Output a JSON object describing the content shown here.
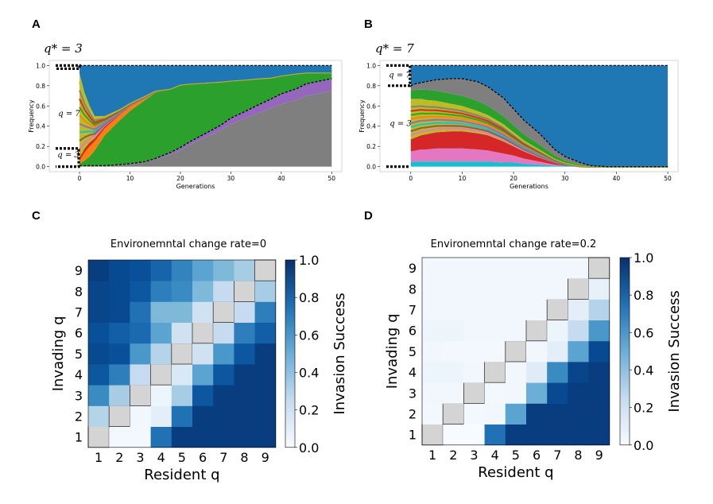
{
  "panels": {
    "A": {
      "letter": "A",
      "qstar": "q* = 3"
    },
    "B": {
      "letter": "B",
      "qstar": "q* = 7"
    },
    "C": {
      "letter": "C"
    },
    "D": {
      "letter": "D"
    }
  },
  "colors": {
    "blue": "#1f77b4",
    "green": "#2ca02c",
    "purple": "#9467bd",
    "gray": "#7f7f7f",
    "orange": "#ff7f0e",
    "red": "#d62728",
    "pink": "#e377c2",
    "cyan": "#17becf",
    "olive": "#bcbd22",
    "brown": "#8c564b",
    "cell_grey": "#d4d4d4"
  },
  "chart_data": [
    {
      "type": "area",
      "panel": "A",
      "title": "q* = 3",
      "xlabel": "Generations",
      "ylabel": "Frequency",
      "xlim": [
        -6,
        52
      ],
      "ylim": [
        -0.05,
        1.05
      ],
      "xticks": [
        "0",
        "10",
        "20",
        "30",
        "40",
        "50"
      ],
      "yticks": [
        "0.0",
        "0.2",
        "0.4",
        "0.6",
        "0.8",
        "1.0"
      ],
      "annotations": [
        "q = 7",
        "q = 3"
      ],
      "x": [
        0,
        1,
        2,
        3,
        5,
        8,
        10,
        13,
        15,
        18,
        20,
        22,
        25,
        28,
        30,
        33,
        35,
        38,
        40,
        43,
        45,
        48,
        50
      ],
      "series": [
        {
          "name": "gray (q=3 lineage)",
          "color": "gray",
          "values": [
            0.01,
            0.01,
            0.01,
            0.01,
            0.01,
            0.02,
            0.03,
            0.05,
            0.07,
            0.12,
            0.16,
            0.22,
            0.29,
            0.36,
            0.42,
            0.48,
            0.52,
            0.58,
            0.62,
            0.66,
            0.7,
            0.73,
            0.75
          ]
        },
        {
          "name": "purple",
          "color": "purple",
          "values": [
            0.0,
            0.0,
            0.0,
            0.0,
            0.0,
            0.0,
            0.0,
            0.0,
            0.01,
            0.02,
            0.03,
            0.03,
            0.04,
            0.05,
            0.06,
            0.07,
            0.08,
            0.09,
            0.1,
            0.11,
            0.12,
            0.12,
            0.12
          ]
        },
        {
          "name": "green (q=7)",
          "color": "green",
          "values": [
            0.02,
            0.05,
            0.09,
            0.15,
            0.3,
            0.44,
            0.52,
            0.61,
            0.65,
            0.63,
            0.62,
            0.57,
            0.5,
            0.43,
            0.37,
            0.31,
            0.27,
            0.21,
            0.18,
            0.15,
            0.11,
            0.08,
            0.06
          ]
        },
        {
          "name": "orange",
          "color": "orange",
          "values": [
            0.03,
            0.08,
            0.1,
            0.09,
            0.07,
            0.05,
            0.04,
            0.02,
            0.01,
            0.0,
            0.0,
            0.0,
            0.0,
            0.0,
            0.0,
            0.0,
            0.0,
            0.0,
            0.0,
            0.0,
            0.0,
            0.0,
            0.0
          ]
        },
        {
          "name": "red",
          "color": "red",
          "values": [
            0.03,
            0.04,
            0.04,
            0.03,
            0.02,
            0.01,
            0.01,
            0.0,
            0.0,
            0.0,
            0.0,
            0.0,
            0.0,
            0.0,
            0.0,
            0.0,
            0.0,
            0.0,
            0.0,
            0.0,
            0.0,
            0.0,
            0.0
          ]
        },
        {
          "name": "mixed others",
          "color": "olive",
          "values": [
            0.83,
            0.55,
            0.36,
            0.22,
            0.1,
            0.05,
            0.03,
            0.02,
            0.01,
            0.0,
            0.0,
            0.0,
            0.0,
            0.0,
            0.0,
            0.0,
            0.0,
            0.0,
            0.0,
            0.0,
            0.0,
            0.0,
            0.0
          ]
        },
        {
          "name": "blue",
          "color": "blue",
          "values": [
            0.08,
            0.27,
            0.4,
            0.5,
            0.5,
            0.43,
            0.37,
            0.3,
            0.25,
            0.23,
            0.19,
            0.18,
            0.17,
            0.16,
            0.15,
            0.14,
            0.13,
            0.12,
            0.1,
            0.08,
            0.07,
            0.07,
            0.07
          ]
        }
      ],
      "dashed_line": {
        "name": "q = 3 frequency",
        "values": [
          0.01,
          0.01,
          0.01,
          0.01,
          0.01,
          0.02,
          0.03,
          0.05,
          0.08,
          0.14,
          0.19,
          0.25,
          0.33,
          0.41,
          0.48,
          0.55,
          0.6,
          0.67,
          0.72,
          0.77,
          0.82,
          0.85,
          0.87
        ]
      }
    },
    {
      "type": "area",
      "panel": "B",
      "title": "q* = 7",
      "xlabel": "Generations",
      "ylabel": "Frequency",
      "xlim": [
        -6,
        52
      ],
      "ylim": [
        -0.05,
        1.05
      ],
      "xticks": [
        "0",
        "10",
        "20",
        "30",
        "40",
        "50"
      ],
      "yticks": [
        "0.0",
        "0.2",
        "0.4",
        "0.6",
        "0.8",
        "1.0"
      ],
      "annotations": [
        "q = 7",
        "q = 3"
      ],
      "x": [
        0,
        1,
        2,
        3,
        5,
        8,
        10,
        13,
        15,
        18,
        20,
        22,
        25,
        28,
        30,
        33,
        35,
        38,
        40,
        43,
        45,
        48,
        50
      ],
      "series": [
        {
          "name": "cyan",
          "color": "cyan",
          "values": [
            0.05,
            0.05,
            0.05,
            0.05,
            0.05,
            0.05,
            0.05,
            0.05,
            0.05,
            0.04,
            0.04,
            0.03,
            0.02,
            0.01,
            0.01,
            0.0,
            0.0,
            0.0,
            0.0,
            0.0,
            0.0,
            0.0,
            0.0
          ]
        },
        {
          "name": "pink",
          "color": "pink",
          "values": [
            0.1,
            0.11,
            0.12,
            0.12,
            0.13,
            0.13,
            0.13,
            0.12,
            0.11,
            0.09,
            0.07,
            0.05,
            0.03,
            0.01,
            0.0,
            0.0,
            0.0,
            0.0,
            0.0,
            0.0,
            0.0,
            0.0,
            0.0
          ]
        },
        {
          "name": "red",
          "color": "red",
          "values": [
            0.12,
            0.13,
            0.14,
            0.15,
            0.16,
            0.17,
            0.17,
            0.16,
            0.15,
            0.12,
            0.09,
            0.07,
            0.04,
            0.02,
            0.01,
            0.0,
            0.0,
            0.0,
            0.0,
            0.0,
            0.0,
            0.0,
            0.0
          ]
        },
        {
          "name": "mixed others",
          "color": "olive",
          "values": [
            0.4,
            0.38,
            0.36,
            0.34,
            0.31,
            0.27,
            0.25,
            0.22,
            0.2,
            0.17,
            0.14,
            0.11,
            0.08,
            0.04,
            0.02,
            0.01,
            0.0,
            0.0,
            0.0,
            0.0,
            0.0,
            0.0,
            0.0
          ]
        },
        {
          "name": "green",
          "color": "green",
          "values": [
            0.08,
            0.09,
            0.09,
            0.1,
            0.1,
            0.1,
            0.1,
            0.1,
            0.09,
            0.08,
            0.07,
            0.06,
            0.05,
            0.03,
            0.02,
            0.01,
            0.0,
            0.0,
            0.0,
            0.0,
            0.0,
            0.0,
            0.0
          ]
        },
        {
          "name": "gray (q=7 lineage)",
          "color": "gray",
          "values": [
            0.05,
            0.06,
            0.07,
            0.08,
            0.11,
            0.15,
            0.17,
            0.19,
            0.19,
            0.18,
            0.16,
            0.14,
            0.11,
            0.06,
            0.04,
            0.02,
            0.01,
            0.0,
            0.0,
            0.0,
            0.0,
            0.0,
            0.0
          ]
        },
        {
          "name": "blue (q=3 lineage)",
          "color": "blue",
          "values": [
            0.2,
            0.18,
            0.17,
            0.16,
            0.14,
            0.13,
            0.13,
            0.16,
            0.21,
            0.32,
            0.43,
            0.54,
            0.67,
            0.83,
            0.9,
            0.96,
            0.99,
            1.0,
            1.0,
            1.0,
            1.0,
            1.0,
            1.0
          ]
        }
      ],
      "dashed_line": {
        "name": "q = 7 boundary",
        "values": [
          0.8,
          0.82,
          0.83,
          0.84,
          0.86,
          0.87,
          0.87,
          0.84,
          0.79,
          0.68,
          0.57,
          0.46,
          0.33,
          0.17,
          0.1,
          0.04,
          0.01,
          0.0,
          0.0,
          0.0,
          0.0,
          0.0,
          0.0
        ]
      }
    },
    {
      "type": "heatmap",
      "panel": "C",
      "title": "Environemntal change rate=0",
      "xlabel": "Resident q",
      "ylabel": "Invading q",
      "x_categories": [
        "1",
        "2",
        "3",
        "4",
        "5",
        "6",
        "7",
        "8",
        "9"
      ],
      "y_categories": [
        "1",
        "2",
        "3",
        "4",
        "5",
        "6",
        "7",
        "8",
        "9"
      ],
      "colorbar": {
        "label": "Invasion Success",
        "ticks": [
          "0.0",
          "0.2",
          "0.4",
          "0.6",
          "0.8",
          "1.0"
        ],
        "range": [
          0,
          1
        ]
      },
      "matrix_rows_invading_1_to_9": [
        [
          null,
          0.02,
          0.02,
          0.75,
          0.95,
          0.95,
          0.95,
          0.95,
          0.95
        ],
        [
          0.3,
          null,
          0.03,
          0.1,
          0.75,
          0.95,
          0.95,
          0.95,
          0.95
        ],
        [
          0.65,
          0.35,
          null,
          0.05,
          0.35,
          0.85,
          0.95,
          0.95,
          0.95
        ],
        [
          0.85,
          0.7,
          0.25,
          null,
          0.15,
          0.55,
          0.85,
          0.95,
          0.95
        ],
        [
          0.9,
          0.88,
          0.6,
          0.3,
          null,
          0.2,
          0.6,
          0.85,
          0.95
        ],
        [
          0.88,
          0.82,
          0.78,
          0.55,
          0.2,
          null,
          0.25,
          0.7,
          0.82
        ],
        [
          0.92,
          0.9,
          0.75,
          0.45,
          0.45,
          0.2,
          null,
          0.25,
          0.7
        ],
        [
          0.92,
          0.9,
          0.85,
          0.7,
          0.65,
          0.45,
          0.25,
          null,
          0.35
        ],
        [
          0.95,
          0.9,
          0.88,
          0.8,
          0.68,
          0.55,
          0.45,
          0.35,
          null
        ]
      ]
    },
    {
      "type": "heatmap",
      "panel": "D",
      "title": "Environemntal change rate=0.2",
      "xlabel": "Resident q",
      "ylabel": "Invading q",
      "x_categories": [
        "1",
        "2",
        "3",
        "4",
        "5",
        "6",
        "7",
        "8",
        "9"
      ],
      "y_categories": [
        "1",
        "2",
        "3",
        "4",
        "5",
        "6",
        "7",
        "8",
        "9"
      ],
      "colorbar": {
        "label": "Invasion Success",
        "ticks": [
          "0.0",
          "0.2",
          "0.4",
          "0.6",
          "0.8",
          "1.0"
        ],
        "range": [
          0,
          1
        ]
      },
      "matrix_rows_invading_1_to_9": [
        [
          null,
          0.0,
          0.0,
          0.75,
          0.95,
          0.95,
          0.95,
          0.95,
          0.95
        ],
        [
          0.02,
          null,
          0.02,
          0.03,
          0.55,
          0.95,
          0.95,
          0.95,
          0.95
        ],
        [
          0.03,
          0.03,
          null,
          0.02,
          0.03,
          0.5,
          0.9,
          0.95,
          0.95
        ],
        [
          0.05,
          0.05,
          0.03,
          null,
          0.03,
          0.12,
          0.65,
          0.92,
          0.95
        ],
        [
          0.03,
          0.02,
          0.02,
          0.02,
          null,
          0.03,
          0.1,
          0.55,
          0.9
        ],
        [
          0.05,
          0.05,
          0.03,
          0.03,
          0.03,
          null,
          0.05,
          0.25,
          0.6
        ],
        [
          0.03,
          0.03,
          0.03,
          0.03,
          0.03,
          0.03,
          null,
          0.1,
          0.3
        ],
        [
          0.03,
          0.03,
          0.03,
          0.03,
          0.03,
          0.03,
          0.03,
          null,
          0.08
        ],
        [
          0.03,
          0.03,
          0.03,
          0.03,
          0.03,
          0.03,
          0.03,
          0.03,
          null
        ]
      ]
    }
  ]
}
